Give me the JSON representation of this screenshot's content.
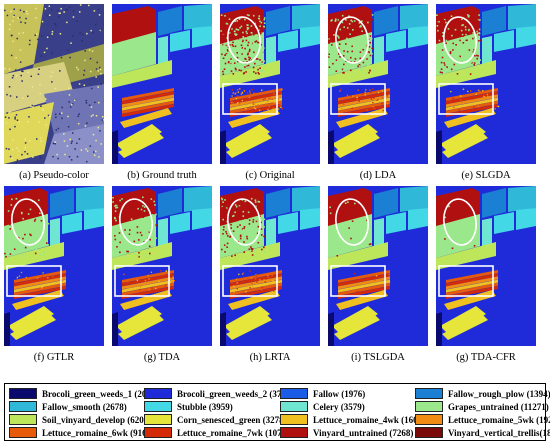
{
  "panels": [
    {
      "caption": "(a) Pseudo-color",
      "type": "pseudo",
      "ellipse": false,
      "rect": false,
      "noise": 0
    },
    {
      "caption": "(b) Ground truth",
      "type": "map",
      "ellipse": false,
      "rect": false,
      "noise": 0
    },
    {
      "caption": "(c)  Original",
      "type": "map",
      "ellipse": true,
      "rect": true,
      "noise": 0.55
    },
    {
      "caption": "(d) LDA",
      "type": "map",
      "ellipse": true,
      "rect": true,
      "noise": 0.35
    },
    {
      "caption": "(e) SLGDA",
      "type": "map",
      "ellipse": true,
      "rect": true,
      "noise": 0.3
    },
    {
      "caption": "(f) GTLR",
      "type": "map",
      "ellipse": true,
      "rect": true,
      "noise": 0.12
    },
    {
      "caption": "(g) TDA",
      "type": "map",
      "ellipse": true,
      "rect": true,
      "noise": 0.2
    },
    {
      "caption": "(h) LRTA",
      "type": "map",
      "ellipse": true,
      "rect": true,
      "noise": 0.3
    },
    {
      "caption": "(i) TSLGDA",
      "type": "map",
      "ellipse": true,
      "rect": true,
      "noise": 0.05
    },
    {
      "caption": "(g) TDA-CFR",
      "type": "map",
      "ellipse": true,
      "rect": true,
      "noise": 0.02
    }
  ],
  "legend": [
    {
      "label": "Brocoli_green_weeds_1 (2009)",
      "color": "#0a0a6e"
    },
    {
      "label": "Brocoli_green_weeds_2 (3726)",
      "color": "#1f2bd8"
    },
    {
      "label": "Fallow (1976)",
      "color": "#1a5ce6"
    },
    {
      "label": "Fallow_rough_plow (1394)",
      "color": "#1b7fd4"
    },
    {
      "label": "Fallow_smooth (2678)",
      "color": "#2fb8d8"
    },
    {
      "label": "Stubble (3959)",
      "color": "#43d8e6"
    },
    {
      "label": "Celery (3579)",
      "color": "#6ee6d2"
    },
    {
      "label": "Grapes_untrained (11271)",
      "color": "#9be88c"
    },
    {
      "label": "Soil_vinyard_develop (6203)",
      "color": "#bde65a"
    },
    {
      "label": "Corn_senesced_green (3278)",
      "color": "#e6e63a"
    },
    {
      "label": "Lettuce_romaine_4wk (1608)",
      "color": "#f0c020"
    },
    {
      "label": "Lettuce_romaine_5wk (1927)",
      "color": "#f08c14"
    },
    {
      "label": "Lettuce_romaine_6wk (916)",
      "color": "#e65a0a"
    },
    {
      "label": "Lettuce_romaine_7wk (1070)",
      "color": "#d42a08"
    },
    {
      "label": "Vinyard_untrained (7268)",
      "color": "#b01010"
    },
    {
      "label": "Vinyard_vertical_trellis(1807)",
      "color": "#7a0a0a"
    }
  ]
}
